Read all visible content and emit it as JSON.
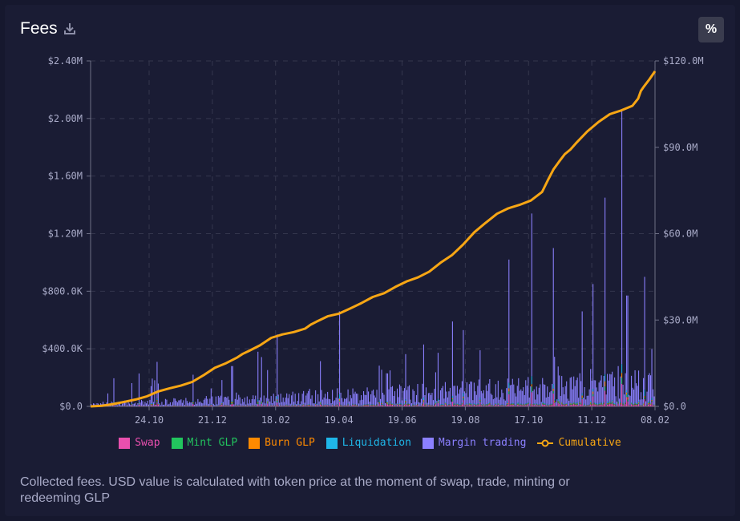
{
  "header": {
    "title": "Fees",
    "percent_button": "%"
  },
  "colors": {
    "swap": "#e94fae",
    "mint": "#22c55e",
    "burn": "#ff8a00",
    "liquidation": "#1fb6e8",
    "margin": "#8b80ff",
    "cumulative": "#f7a614"
  },
  "chart_data": {
    "type": "bar",
    "title": "Fees",
    "stacked": true,
    "x_tick_labels": [
      "24.10",
      "21.12",
      "18.02",
      "19.04",
      "19.06",
      "19.08",
      "17.10",
      "11.12",
      "08.02"
    ],
    "y_left": {
      "ticks": [
        0,
        400000,
        800000,
        1200000,
        1600000,
        2000000,
        2400000
      ],
      "tick_labels": [
        "$0.0",
        "$400.0K",
        "$800.0K",
        "$1.20M",
        "$1.60M",
        "$2.00M",
        "$2.40M"
      ],
      "range": [
        0,
        2400000
      ]
    },
    "y_right": {
      "ticks": [
        0,
        30000000,
        60000000,
        90000000,
        120000000
      ],
      "tick_labels": [
        "$0.0",
        "$30.0M",
        "$60.0M",
        "$90.0M",
        "$120.0M"
      ],
      "range": [
        0,
        120000000
      ]
    },
    "series": [
      {
        "name": "Swap",
        "kind": "bar"
      },
      {
        "name": "Mint GLP",
        "kind": "bar"
      },
      {
        "name": "Burn GLP",
        "kind": "bar"
      },
      {
        "name": "Liquidation",
        "kind": "bar"
      },
      {
        "name": "Margin trading",
        "kind": "bar"
      },
      {
        "name": "Cumulative",
        "kind": "line",
        "axis": "right"
      }
    ],
    "cumulative_points": [
      [
        0,
        0
      ],
      [
        2,
        0.2
      ],
      [
        4,
        0.8
      ],
      [
        6,
        1.6
      ],
      [
        8,
        2.4
      ],
      [
        10,
        3.5
      ],
      [
        12,
        5.2
      ],
      [
        14,
        6.3
      ],
      [
        16,
        7.2
      ],
      [
        18,
        8.5
      ],
      [
        20,
        10.8
      ],
      [
        22,
        13.4
      ],
      [
        24,
        15.0
      ],
      [
        26,
        17.0
      ],
      [
        27,
        18.3
      ],
      [
        28,
        19.2
      ],
      [
        30,
        21.2
      ],
      [
        32,
        23.8
      ],
      [
        34,
        25.0
      ],
      [
        36,
        25.8
      ],
      [
        38,
        27.0
      ],
      [
        39,
        28.4
      ],
      [
        40,
        29.4
      ],
      [
        42,
        31.3
      ],
      [
        44,
        32.2
      ],
      [
        46,
        34.0
      ],
      [
        48,
        35.9
      ],
      [
        50,
        38.0
      ],
      [
        52,
        39.3
      ],
      [
        54,
        41.5
      ],
      [
        56,
        43.4
      ],
      [
        58,
        44.8
      ],
      [
        60,
        46.8
      ],
      [
        62,
        49.9
      ],
      [
        64,
        52.5
      ],
      [
        66,
        56.2
      ],
      [
        68,
        60.5
      ],
      [
        70,
        63.8
      ],
      [
        72,
        66.9
      ],
      [
        74,
        68.8
      ],
      [
        76,
        70.0
      ],
      [
        78,
        71.5
      ],
      [
        80,
        74.5
      ],
      [
        81,
        78.5
      ],
      [
        82,
        82.3
      ],
      [
        83,
        85.0
      ],
      [
        84,
        87.6
      ],
      [
        85,
        89.2
      ],
      [
        86,
        91.4
      ],
      [
        88,
        95.5
      ],
      [
        90,
        98.8
      ],
      [
        92,
        101.5
      ],
      [
        94,
        102.8
      ],
      [
        95,
        103.6
      ],
      [
        96,
        104.4
      ],
      [
        97,
        106.9
      ],
      [
        97.5,
        109.6
      ],
      [
        98,
        111.0
      ],
      [
        99,
        113.6
      ],
      [
        100,
        116.4
      ]
    ],
    "bar_profile_note": "daily stacked fee bars; tallest spike near 11.12 reaching about $2.05M",
    "legend_position": "bottom"
  },
  "legend": {
    "items": [
      {
        "label": "Swap"
      },
      {
        "label": "Mint GLP"
      },
      {
        "label": "Burn GLP"
      },
      {
        "label": "Liquidation"
      },
      {
        "label": "Margin trading"
      },
      {
        "label": "Cumulative"
      }
    ]
  },
  "caption": "Collected fees. USD value is calculated with token price at the moment of swap, trade, minting or redeeming GLP"
}
